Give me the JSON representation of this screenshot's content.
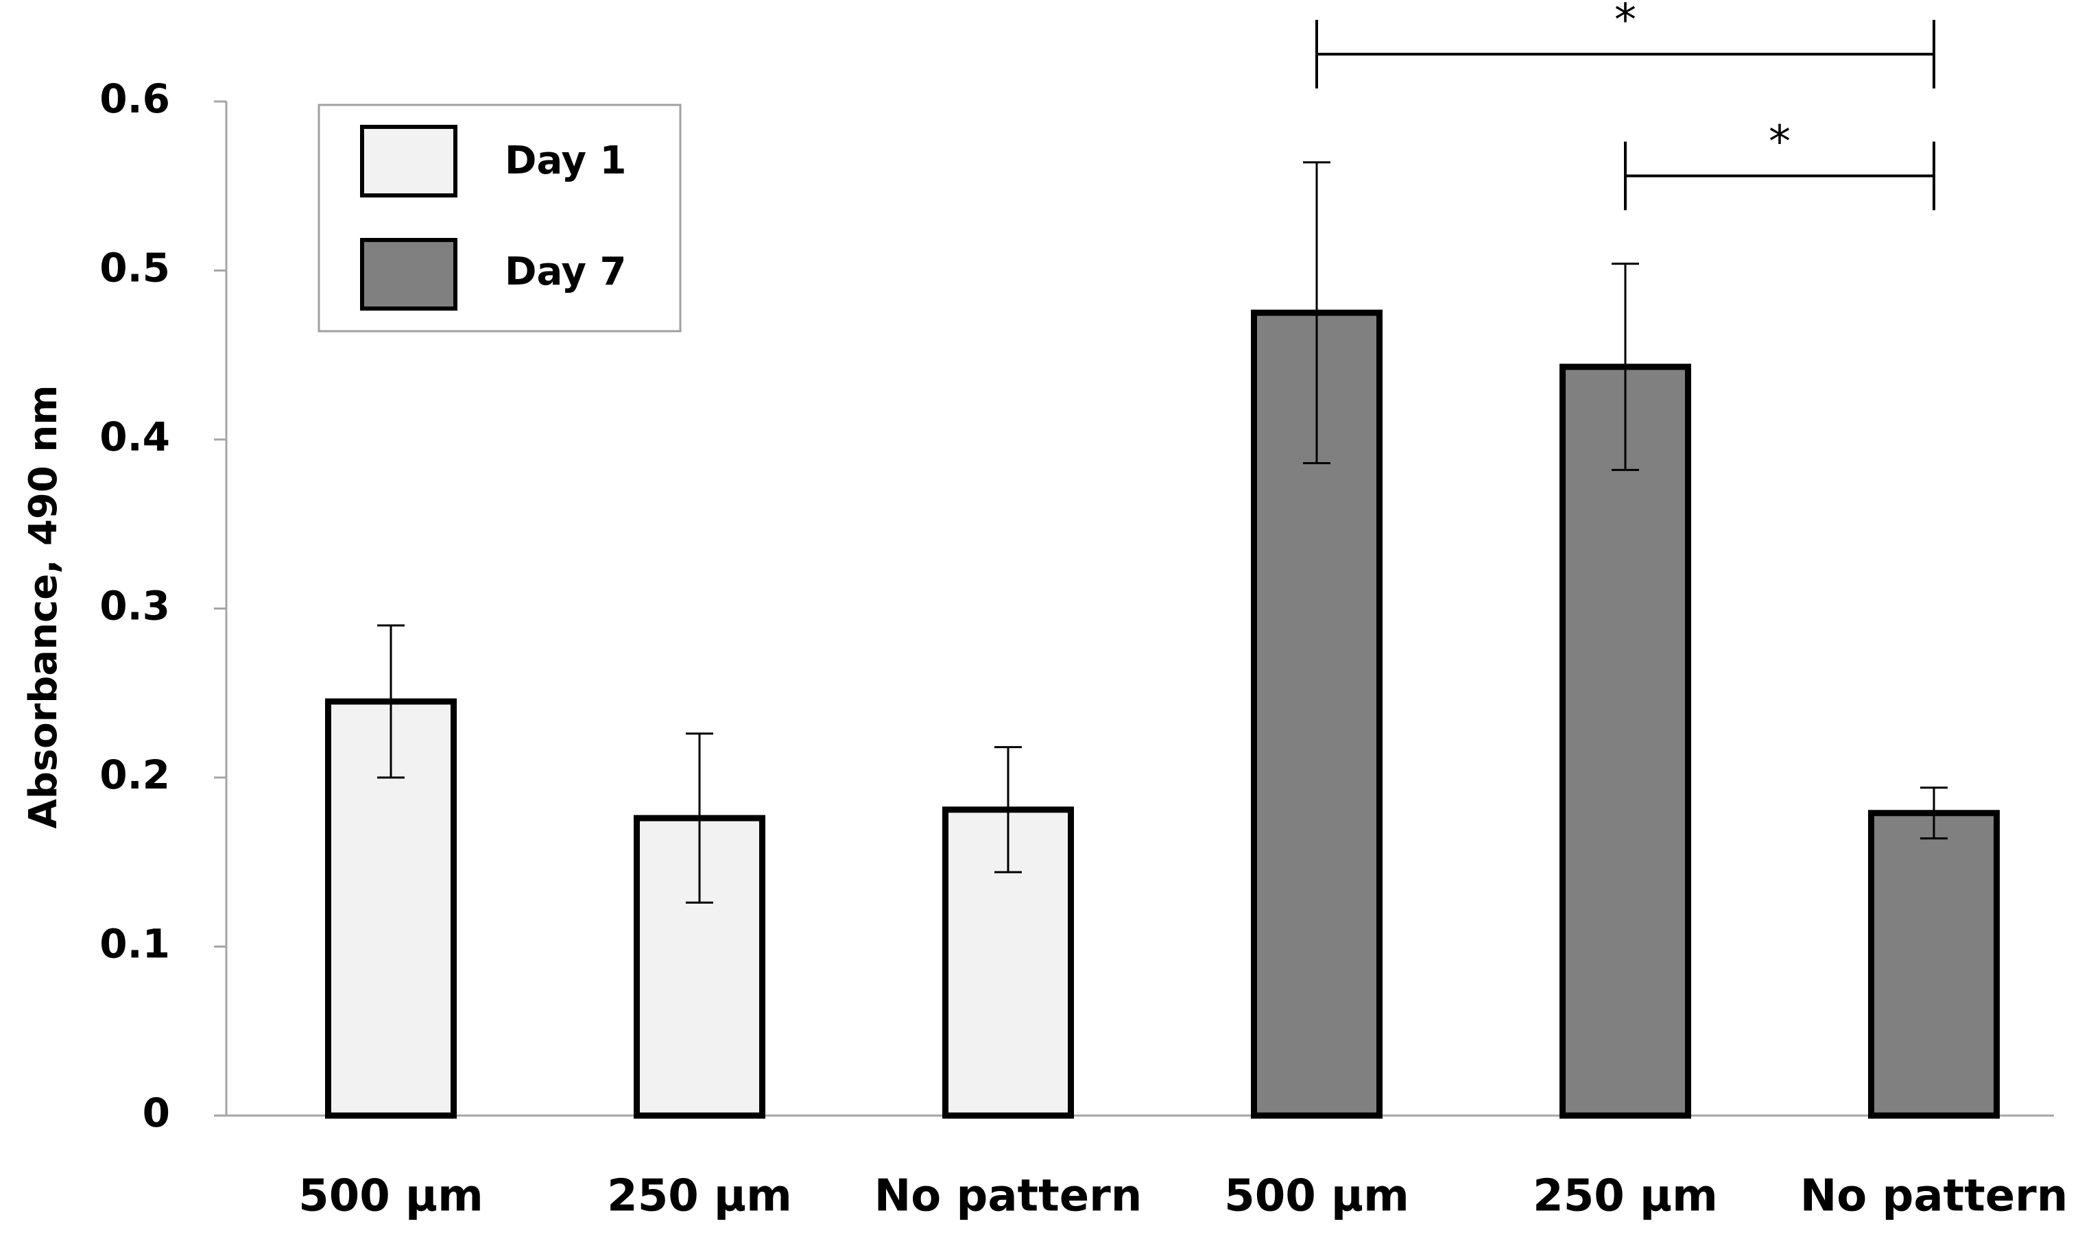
{
  "chart_data": {
    "type": "bar",
    "title": "",
    "xlabel": "",
    "ylabel": "Absorbance, 490 nm",
    "ylim": [
      0,
      0.6
    ],
    "yticks": [
      0,
      0.1,
      0.2,
      0.3,
      0.4,
      0.5,
      0.6
    ],
    "ytick_labels": [
      "0",
      "0.1",
      "0.2",
      "0.3",
      "0.4",
      "0.5",
      "0.6"
    ],
    "grid": false,
    "legend_position": "top-left",
    "categories": [
      "500 µm",
      "250 µm",
      "No pattern",
      "500 µm",
      "250 µm",
      "No pattern"
    ],
    "series": [
      {
        "name": "Day 1",
        "color": "#f2f2f2",
        "positions": [
          0,
          1,
          2
        ],
        "values": [
          0.245,
          0.176,
          0.181
        ],
        "error": [
          0.045,
          0.05,
          0.037
        ]
      },
      {
        "name": "Day 7",
        "color": "#808080",
        "positions": [
          3,
          4,
          5
        ],
        "values": [
          0.475,
          0.443,
          0.179
        ],
        "error": [
          0.089,
          0.061,
          0.015
        ]
      }
    ],
    "annotations": [
      {
        "from": 3,
        "to": 5,
        "label": "*",
        "level": 0.628
      },
      {
        "from": 4,
        "to": 5,
        "label": "*",
        "level": 0.556
      }
    ]
  }
}
